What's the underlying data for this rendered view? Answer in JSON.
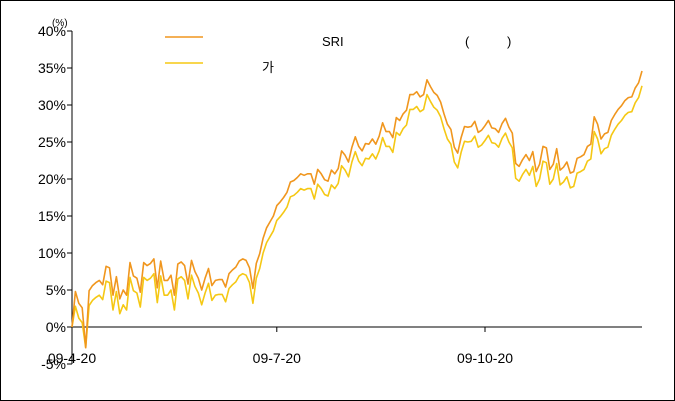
{
  "chart_data": {
    "type": "line",
    "unit_label": "(%)",
    "ylim": [
      -5,
      40
    ],
    "yticks": [
      "40%",
      "35%",
      "30%",
      "25%",
      "20%",
      "15%",
      "10%",
      "5%",
      "0%",
      "-5%"
    ],
    "ytick_values": [
      40,
      35,
      30,
      25,
      20,
      15,
      10,
      5,
      0,
      -5
    ],
    "xtick_labels": [
      "09-4-20",
      "09-7-20",
      "09-10-20"
    ],
    "xtick_index": [
      0,
      60,
      121
    ],
    "n_points": 168,
    "grid": false,
    "legend_position": "top",
    "legend_title_parts": [
      "SRI",
      "(",
      ")"
    ],
    "series": [
      {
        "name": "",
        "color": "#f0961e",
        "values": [
          0.0,
          4.8,
          3.2,
          2.6,
          -2.8,
          4.9,
          5.6,
          6.0,
          6.3,
          5.7,
          8.2,
          8.0,
          4.3,
          6.8,
          3.8,
          5.0,
          4.3,
          8.7,
          6.9,
          6.6,
          4.7,
          8.7,
          8.3,
          8.6,
          9.2,
          5.3,
          8.9,
          6.3,
          6.3,
          7.0,
          4.3,
          8.5,
          8.8,
          8.3,
          5.8,
          9.0,
          7.5,
          6.6,
          5.0,
          6.6,
          7.9,
          5.6,
          6.3,
          6.4,
          6.4,
          5.4,
          7.2,
          7.7,
          8.1,
          8.9,
          9.2,
          9.0,
          8.0,
          5.2,
          8.6,
          9.9,
          12.0,
          13.4,
          14.2,
          15.0,
          16.4,
          16.9,
          17.5,
          18.2,
          19.6,
          19.8,
          20.2,
          20.7,
          20.5,
          20.7,
          20.7,
          19.3,
          21.3,
          20.7,
          19.9,
          19.7,
          21.2,
          20.7,
          21.4,
          23.8,
          23.2,
          22.3,
          24.3,
          25.7,
          24.4,
          23.8,
          24.8,
          24.7,
          25.4,
          24.7,
          25.8,
          27.6,
          26.4,
          26.4,
          25.6,
          28.3,
          27.9,
          28.8,
          29.3,
          31.4,
          31.4,
          31.8,
          31.1,
          31.4,
          33.4,
          32.5,
          31.7,
          31.3,
          30.4,
          28.8,
          27.4,
          26.7,
          24.3,
          23.5,
          25.6,
          27.1,
          27.0,
          27.1,
          27.8,
          26.3,
          26.6,
          27.2,
          27.9,
          26.9,
          26.8,
          26.3,
          27.5,
          28.2,
          27.0,
          26.2,
          22.1,
          21.7,
          22.6,
          23.3,
          22.5,
          23.7,
          21.0,
          22.0,
          24.4,
          24.2,
          21.3,
          22.0,
          24.1,
          21.2,
          21.6,
          22.3,
          20.8,
          21.0,
          22.8,
          23.0,
          23.3,
          24.4,
          24.7,
          28.4,
          27.4,
          25.4,
          26.1,
          26.3,
          27.9,
          28.7,
          29.4,
          29.9,
          30.6,
          31.0,
          31.1,
          32.3,
          33.0,
          34.6
        ]
      },
      {
        "name": "",
        "color": "#f5c814",
        "values": [
          0.0,
          2.8,
          1.2,
          0.6,
          -2.8,
          2.9,
          3.6,
          4.0,
          4.3,
          3.7,
          6.2,
          6.0,
          2.3,
          4.8,
          1.8,
          3.0,
          2.3,
          6.7,
          4.9,
          4.6,
          2.7,
          6.7,
          6.3,
          6.6,
          7.2,
          3.3,
          6.9,
          4.3,
          4.3,
          5.0,
          2.3,
          6.5,
          6.8,
          6.3,
          3.8,
          7.0,
          5.5,
          4.6,
          3.0,
          4.6,
          5.9,
          3.6,
          4.3,
          4.4,
          4.4,
          3.4,
          5.2,
          5.7,
          6.1,
          6.9,
          7.2,
          7.0,
          6.0,
          3.2,
          6.6,
          7.9,
          10.0,
          11.4,
          12.2,
          13.0,
          14.4,
          14.9,
          15.5,
          16.2,
          17.6,
          17.8,
          18.2,
          18.7,
          18.5,
          18.7,
          18.7,
          17.3,
          19.3,
          18.7,
          17.9,
          17.7,
          19.2,
          18.7,
          19.4,
          21.8,
          21.2,
          20.3,
          22.3,
          23.7,
          22.4,
          21.8,
          22.8,
          22.7,
          23.4,
          22.7,
          23.8,
          25.6,
          24.4,
          24.4,
          23.6,
          26.3,
          25.9,
          26.8,
          27.3,
          29.4,
          29.4,
          29.8,
          29.1,
          29.4,
          31.4,
          30.5,
          29.7,
          29.3,
          28.4,
          26.8,
          25.4,
          24.7,
          22.3,
          21.5,
          23.6,
          25.1,
          25.0,
          25.1,
          25.8,
          24.3,
          24.6,
          25.2,
          25.9,
          24.9,
          24.8,
          24.3,
          25.5,
          26.2,
          25.0,
          24.2,
          20.1,
          19.7,
          20.6,
          21.3,
          20.5,
          21.7,
          19.0,
          20.0,
          22.4,
          22.2,
          19.3,
          20.0,
          22.1,
          19.2,
          19.6,
          20.3,
          18.8,
          19.0,
          20.8,
          21.0,
          21.3,
          22.4,
          22.7,
          26.4,
          25.4,
          23.4,
          24.1,
          24.3,
          25.9,
          26.7,
          27.4,
          27.9,
          28.6,
          29.0,
          29.1,
          30.3,
          31.0,
          32.6
        ]
      }
    ]
  }
}
